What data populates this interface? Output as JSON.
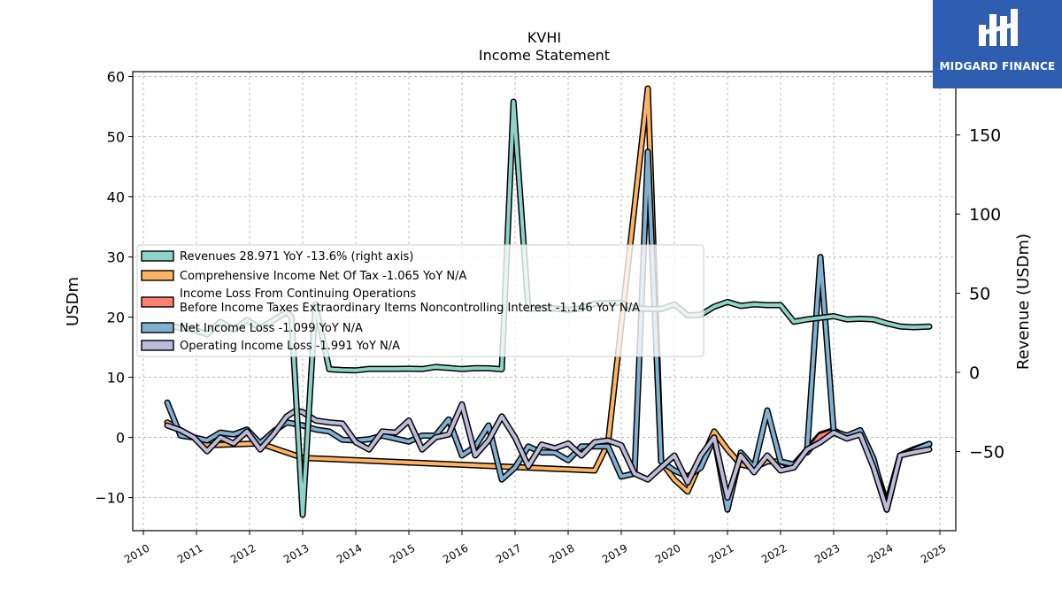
{
  "chart_data": {
    "type": "line",
    "title": "KVHI",
    "subtitle": "Income Statement",
    "ylabel": "USDm",
    "ylabel_right": "Revenue (USDm)",
    "ylim": [
      -15.5,
      60.8
    ],
    "ylim_right": [
      -100,
      190
    ],
    "xlim": [
      2009.8,
      2025.3
    ],
    "yticks": [
      -10,
      0,
      10,
      20,
      30,
      40,
      50,
      60
    ],
    "yticks_right": [
      -50,
      0,
      50,
      100,
      150
    ],
    "xticks": [
      2010,
      2011,
      2012,
      2013,
      2014,
      2015,
      2016,
      2017,
      2018,
      2019,
      2020,
      2021,
      2022,
      2023,
      2024,
      2025
    ],
    "grid": true,
    "legend_placement": "center-left",
    "series": [
      {
        "name": "Revenues  28.971 YoY -13.6% (right axis)",
        "axis": "right",
        "color": "#8dd3c7",
        "x": [
          2010.45,
          2010.7,
          2010.95,
          2011.2,
          2011.45,
          2011.7,
          2011.95,
          2012.2,
          2012.45,
          2012.7,
          2012.79,
          2013.0,
          2013.24,
          2013.5,
          2013.75,
          2014.0,
          2014.25,
          2014.5,
          2014.75,
          2015.0,
          2015.25,
          2015.5,
          2015.75,
          2016.0,
          2016.25,
          2016.5,
          2016.75,
          2016.97,
          2017.25,
          2017.5,
          2017.75,
          2018.0,
          2018.25,
          2018.5,
          2018.75,
          2019.0,
          2019.25,
          2019.5,
          2019.75,
          2020.0,
          2020.25,
          2020.5,
          2020.75,
          2021.0,
          2021.25,
          2021.5,
          2021.75,
          2022.0,
          2022.25,
          2022.5,
          2022.75,
          2023.0,
          2023.25,
          2023.5,
          2023.75,
          2024.0,
          2024.25,
          2024.5,
          2024.8
        ],
        "values": [
          30,
          28,
          27,
          24,
          32,
          27,
          33,
          28,
          33,
          38,
          35,
          -90,
          43,
          2,
          1.5,
          1.3,
          2.2,
          2.2,
          2.2,
          2.3,
          2.1,
          3.4,
          2.8,
          2.1,
          2.7,
          2.6,
          2.0,
          171,
          40,
          40.5,
          40.5,
          39.5,
          40.5,
          43.5,
          43.7,
          44,
          40.5,
          40,
          40,
          43,
          36,
          36.5,
          41.5,
          44.5,
          42,
          43,
          42.5,
          42.5,
          32,
          33.5,
          34.5,
          35.5,
          33.5,
          33.9,
          33.5,
          31,
          29,
          28.5,
          28.97
        ]
      },
      {
        "name": "Comprehensive Income Net Of Tax  -1.065 YoY N/A",
        "axis": "left",
        "color": "#fdb462",
        "x": [
          2010.45,
          2010.7,
          2010.95,
          2011.2,
          2012.2,
          2013.0,
          2018.5,
          2018.75,
          2019.5,
          2019.75,
          2020.0,
          2020.25,
          2020.5,
          2020.75,
          2021.0,
          2021.25,
          2021.5,
          2021.75,
          2022.0,
          2022.25,
          2022.5,
          2022.75,
          2023.0,
          2023.25,
          2023.5,
          2023.75,
          2024.0,
          2024.25,
          2024.5,
          2024.8
        ],
        "values": [
          2.5,
          1.2,
          0,
          -1.3,
          -1,
          -3.4,
          -5.5,
          -1,
          58,
          -4,
          -7,
          -9,
          -4,
          1,
          -2,
          -4.5,
          -5,
          -4,
          -4,
          -5,
          -2,
          0.5,
          1.2,
          0,
          1,
          -4,
          -11,
          -3,
          -2,
          -1.065
        ]
      },
      {
        "name": "Income Loss From Continuing Operations\nBefore Income Taxes Extraordinary Items Noncontrolling Interest  -1.146 YoY N/A",
        "axis": "left",
        "color": "#fb8072",
        "x": [
          2022.5,
          2022.75,
          2023.0,
          2023.25,
          2023.5,
          2023.75,
          2024.0,
          2024.25,
          2024.5,
          2024.8
        ],
        "values": [
          -2.5,
          0.3,
          1,
          0,
          1,
          -4,
          -11,
          -3,
          -2,
          -1.146
        ]
      },
      {
        "name": "Net Income Loss  -1.099 YoY N/A",
        "axis": "left",
        "color": "#80b1d3",
        "x": [
          2010.45,
          2010.7,
          2010.95,
          2011.2,
          2011.45,
          2011.7,
          2011.95,
          2012.2,
          2012.45,
          2012.7,
          2013.0,
          2013.25,
          2013.5,
          2013.75,
          2014.0,
          2014.25,
          2014.5,
          2014.75,
          2015.0,
          2015.25,
          2015.5,
          2015.75,
          2016.0,
          2016.25,
          2016.5,
          2016.75,
          2017.0,
          2017.25,
          2017.5,
          2017.75,
          2018.0,
          2018.25,
          2018.5,
          2018.75,
          2019.0,
          2019.25,
          2019.5,
          2019.75,
          2020.0,
          2020.25,
          2020.5,
          2020.75,
          2021.0,
          2021.25,
          2021.5,
          2021.75,
          2022.0,
          2022.25,
          2022.5,
          2022.75,
          2023.0,
          2023.25,
          2023.5,
          2023.75,
          2024.0,
          2024.25,
          2024.5,
          2024.8
        ],
        "values": [
          5.8,
          0.3,
          0,
          -0.5,
          0.8,
          0.5,
          1.3,
          -1,
          1,
          2.5,
          2,
          1.3,
          1,
          -0.4,
          -0.5,
          -0.3,
          0.3,
          -0.2,
          -0.7,
          0.3,
          0.3,
          3,
          -3,
          -1.5,
          2,
          -7,
          -5,
          -1.5,
          -2.5,
          -2.5,
          -3.8,
          -1.5,
          -1.5,
          -1.5,
          -6.5,
          -6,
          47.5,
          -4,
          -5.5,
          -6.5,
          -5,
          0,
          -12,
          -2.5,
          -5,
          4.5,
          -4,
          -4.5,
          -2,
          30,
          1,
          0.3,
          1.2,
          -3.5,
          -12,
          -3,
          -2.2,
          -1.099
        ]
      },
      {
        "name": "Operating Income Loss  -1.991 YoY N/A",
        "axis": "left",
        "color": "#bebada",
        "x": [
          2010.45,
          2010.7,
          2010.95,
          2011.2,
          2011.45,
          2011.7,
          2011.95,
          2012.2,
          2012.45,
          2012.7,
          2012.88,
          2013.0,
          2013.25,
          2013.5,
          2013.75,
          2014.0,
          2014.25,
          2014.5,
          2014.75,
          2015.0,
          2015.25,
          2015.5,
          2015.75,
          2016.0,
          2016.25,
          2016.5,
          2016.75,
          2017.0,
          2017.25,
          2017.5,
          2017.75,
          2018.0,
          2018.25,
          2018.5,
          2018.75,
          2019.0,
          2019.25,
          2019.5,
          2019.75,
          2020.0,
          2020.25,
          2020.5,
          2020.75,
          2021.0,
          2021.25,
          2021.5,
          2021.75,
          2022.0,
          2022.25,
          2022.5,
          2022.75,
          2023.0,
          2023.25,
          2023.5,
          2023.75,
          2024.0,
          2024.25,
          2024.5,
          2024.8
        ],
        "values": [
          2,
          1.2,
          0,
          -2.3,
          0,
          -1,
          1,
          -2,
          0.5,
          3.5,
          4.5,
          4.2,
          2.8,
          2.5,
          2.3,
          -0.8,
          -2,
          1,
          0.8,
          2.8,
          -2,
          0,
          0.5,
          5.5,
          -3,
          -0.5,
          3.5,
          0,
          -4.8,
          -1.2,
          -1.8,
          -1,
          -3,
          -0.8,
          -0.5,
          -1.3,
          -6,
          -7,
          -5,
          -3,
          -7.5,
          -3,
          0,
          -10,
          -3,
          -5.8,
          -3,
          -5.5,
          -5,
          -2,
          -0.8,
          0.8,
          -0.2,
          0.5,
          -5,
          -12,
          -3,
          -2.5,
          -1.991
        ]
      }
    ]
  },
  "logo": {
    "text": "MIDGARD FINANCE",
    "color": "#2f5db0"
  }
}
